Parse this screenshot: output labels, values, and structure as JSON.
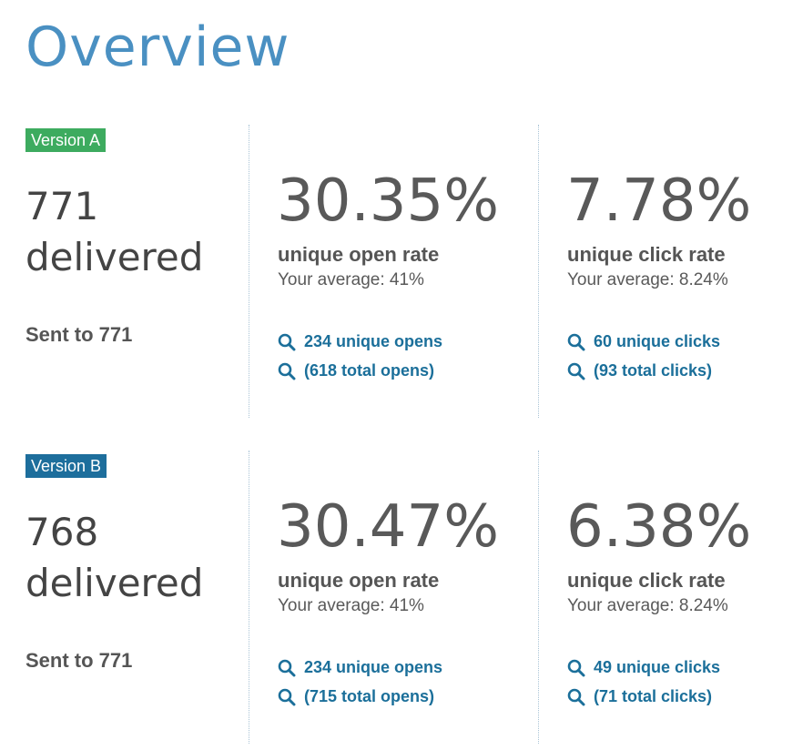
{
  "page": {
    "title": "Overview"
  },
  "versions": [
    {
      "badge": "Version A",
      "badge_color": "#3dab5f",
      "delivered_count": "771",
      "delivered_label": "delivered",
      "sent": "Sent to 771",
      "open": {
        "rate": "30.35%",
        "label": "unique open rate",
        "average": "Your average: 41%",
        "unique_link": "234 unique opens",
        "total_link": "(618 total opens)"
      },
      "click": {
        "rate": "7.78%",
        "label": "unique click rate",
        "average": "Your average: 8.24%",
        "unique_link": "60 unique clicks",
        "total_link": "(93 total clicks)"
      }
    },
    {
      "badge": "Version B",
      "badge_color": "#1d6e9c",
      "delivered_count": "768",
      "delivered_label": "delivered",
      "sent": "Sent to 771",
      "open": {
        "rate": "30.47%",
        "label": "unique open rate",
        "average": "Your average: 41%",
        "unique_link": "234 unique opens",
        "total_link": "(715 total opens)"
      },
      "click": {
        "rate": "6.38%",
        "label": "unique click rate",
        "average": "Your average: 8.24%",
        "unique_link": "49 unique clicks",
        "total_link": "(71 total clicks)"
      }
    }
  ],
  "icons": {
    "link_icon": "search-icon"
  },
  "colors": {
    "title": "#4a90c2",
    "link": "#1b6f9a",
    "text": "#595959"
  }
}
